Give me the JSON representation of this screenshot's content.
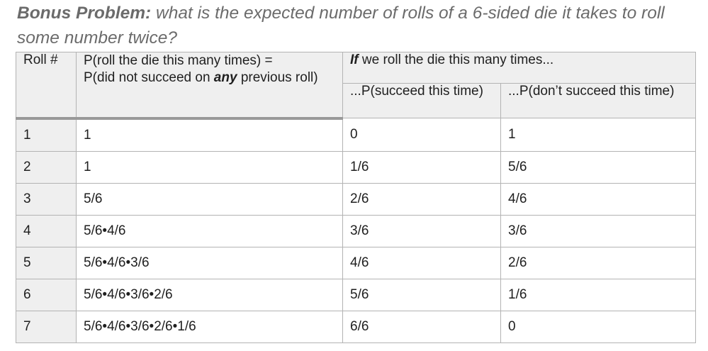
{
  "title": {
    "bold": "Bonus Problem:",
    "rest": " what is the expected number of rolls of a 6-sided die it takes to roll some number twice?"
  },
  "table": {
    "headers": {
      "roll": "Roll #",
      "prob_line1": "P(roll the die this many times) =",
      "prob_line2_a": "P(did not succeed on ",
      "prob_line2_em": "any",
      "prob_line2_b": " previous roll)",
      "if_em": "If",
      "if_rest": " we roll the die this many times...",
      "succeed": "...P(succeed this time)",
      "not_succeed": "...P(don’t succeed this time)"
    },
    "rows": [
      {
        "roll": "1",
        "p_roll": "1",
        "p_succeed": "0",
        "p_not": "1"
      },
      {
        "roll": "2",
        "p_roll": "1",
        "p_succeed": "1/6",
        "p_not": "5/6"
      },
      {
        "roll": "3",
        "p_roll": "5/6",
        "p_succeed": "2/6",
        "p_not": "4/6"
      },
      {
        "roll": "4",
        "p_roll": "5/6•4/6",
        "p_succeed": "3/6",
        "p_not": "3/6"
      },
      {
        "roll": "5",
        "p_roll": "5/6•4/6•3/6",
        "p_succeed": "4/6",
        "p_not": "2/6"
      },
      {
        "roll": "6",
        "p_roll": "5/6•4/6•3/6•2/6",
        "p_succeed": "5/6",
        "p_not": "1/6"
      },
      {
        "roll": "7",
        "p_roll": "5/6•4/6•3/6•2/6•1/6",
        "p_succeed": "6/6",
        "p_not": "0"
      }
    ]
  }
}
